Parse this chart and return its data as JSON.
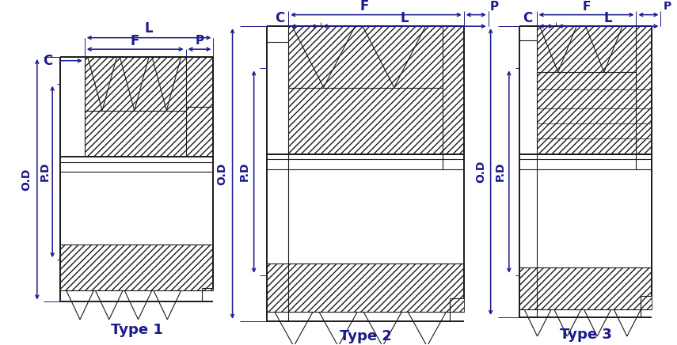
{
  "bg_color": "#ffffff",
  "line_color": "#1a1a1a",
  "dim_color": "#1a1a8c",
  "title_color": "#1a1a8c",
  "lw_main": 1.4,
  "lw_thin": 0.8,
  "lw_dim": 1.1,
  "fs_label": 10,
  "fs_title": 13,
  "types": [
    "Type 1",
    "Type 2",
    "Type 3"
  ]
}
